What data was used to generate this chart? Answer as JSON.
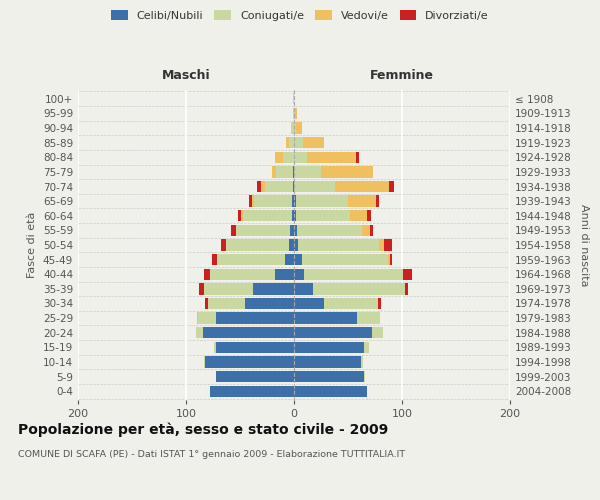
{
  "age_groups": [
    "0-4",
    "5-9",
    "10-14",
    "15-19",
    "20-24",
    "25-29",
    "30-34",
    "35-39",
    "40-44",
    "45-49",
    "50-54",
    "55-59",
    "60-64",
    "65-69",
    "70-74",
    "75-79",
    "80-84",
    "85-89",
    "90-94",
    "95-99",
    "100+"
  ],
  "birth_years": [
    "2004-2008",
    "1999-2003",
    "1994-1998",
    "1989-1993",
    "1984-1988",
    "1979-1983",
    "1974-1978",
    "1969-1973",
    "1964-1968",
    "1959-1963",
    "1954-1958",
    "1949-1953",
    "1944-1948",
    "1939-1943",
    "1934-1938",
    "1929-1933",
    "1924-1928",
    "1919-1923",
    "1914-1918",
    "1909-1913",
    "≤ 1908"
  ],
  "male_celibi": [
    78,
    72,
    82,
    72,
    84,
    72,
    45,
    38,
    18,
    8,
    5,
    4,
    2,
    2,
    1,
    1,
    0,
    0,
    0,
    0,
    0
  ],
  "male_coniugati": [
    0,
    0,
    1,
    2,
    7,
    17,
    35,
    45,
    60,
    63,
    58,
    50,
    45,
    35,
    26,
    16,
    10,
    5,
    3,
    1,
    1
  ],
  "male_vedovi": [
    0,
    0,
    0,
    0,
    0,
    1,
    0,
    0,
    0,
    0,
    0,
    0,
    2,
    2,
    4,
    3,
    8,
    2,
    0,
    0,
    0
  ],
  "male_divorziati": [
    0,
    0,
    0,
    0,
    0,
    0,
    2,
    5,
    5,
    5,
    5,
    4,
    3,
    3,
    3,
    0,
    0,
    0,
    0,
    0,
    0
  ],
  "female_nubili": [
    68,
    65,
    62,
    65,
    72,
    58,
    28,
    18,
    9,
    7,
    4,
    3,
    2,
    2,
    0,
    0,
    0,
    0,
    0,
    0,
    0
  ],
  "female_coniugate": [
    0,
    1,
    2,
    4,
    10,
    22,
    50,
    85,
    92,
    80,
    75,
    60,
    50,
    48,
    38,
    25,
    12,
    8,
    2,
    1,
    0
  ],
  "female_vedove": [
    0,
    0,
    0,
    0,
    0,
    0,
    0,
    0,
    0,
    2,
    4,
    7,
    16,
    26,
    50,
    48,
    45,
    20,
    5,
    2,
    0
  ],
  "female_divorziate": [
    0,
    0,
    0,
    0,
    0,
    0,
    3,
    3,
    8,
    2,
    8,
    3,
    3,
    3,
    5,
    0,
    3,
    0,
    0,
    0,
    0
  ],
  "color_celibi": "#3d6fa8",
  "color_coniugati": "#c8d8a0",
  "color_vedovi": "#f0c060",
  "color_divorziati": "#cc2020",
  "xlim": 200,
  "bg_color": "#f0f0eb",
  "title": "Popolazione per età, sesso e stato civile - 2009",
  "subtitle": "COMUNE DI SCAFA (PE) - Dati ISTAT 1° gennaio 2009 - Elaborazione TUTTITALIA.IT",
  "label_maschi": "Maschi",
  "label_femmine": "Femmine",
  "label_fasce": "Fasce di età",
  "label_anni": "Anni di nascita",
  "legend_labels": [
    "Celibi/Nubili",
    "Coniugati/e",
    "Vedovi/e",
    "Divorziati/e"
  ]
}
